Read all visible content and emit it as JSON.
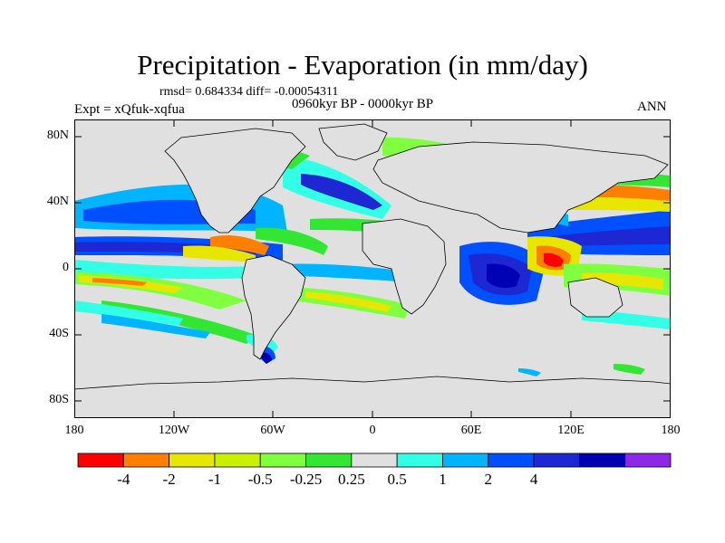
{
  "title": "Precipitation - Evaporation (in mm/day)",
  "stats": "rmsd= 0.684334 diff= -0.00054311",
  "experiment": "Expt = xQfuk-xqfua",
  "period": "0960kyr BP - 0000kyr BP",
  "season": "ANN",
  "lat_labels": [
    "80N",
    "40N",
    "0",
    "40S",
    "80S"
  ],
  "lon_labels": [
    "180",
    "120W",
    "60W",
    "0",
    "60E",
    "120E",
    "180"
  ],
  "colorbar": {
    "colors": [
      "#ff0000",
      "#ff8000",
      "#e6e600",
      "#c8f000",
      "#80ff40",
      "#33e633",
      "#e0e0e0",
      "#33ffe6",
      "#00b4ff",
      "#0050ff",
      "#1e28d2",
      "#0000b4",
      "#8c28e6"
    ],
    "labels": [
      "-4",
      "-2",
      "-1",
      "-0.5",
      "-0.25",
      "0.25",
      "0.5",
      "1",
      "2",
      "4"
    ]
  },
  "colors": {
    "ocean_background": "#e0e0e0",
    "coastline": "#000000"
  }
}
